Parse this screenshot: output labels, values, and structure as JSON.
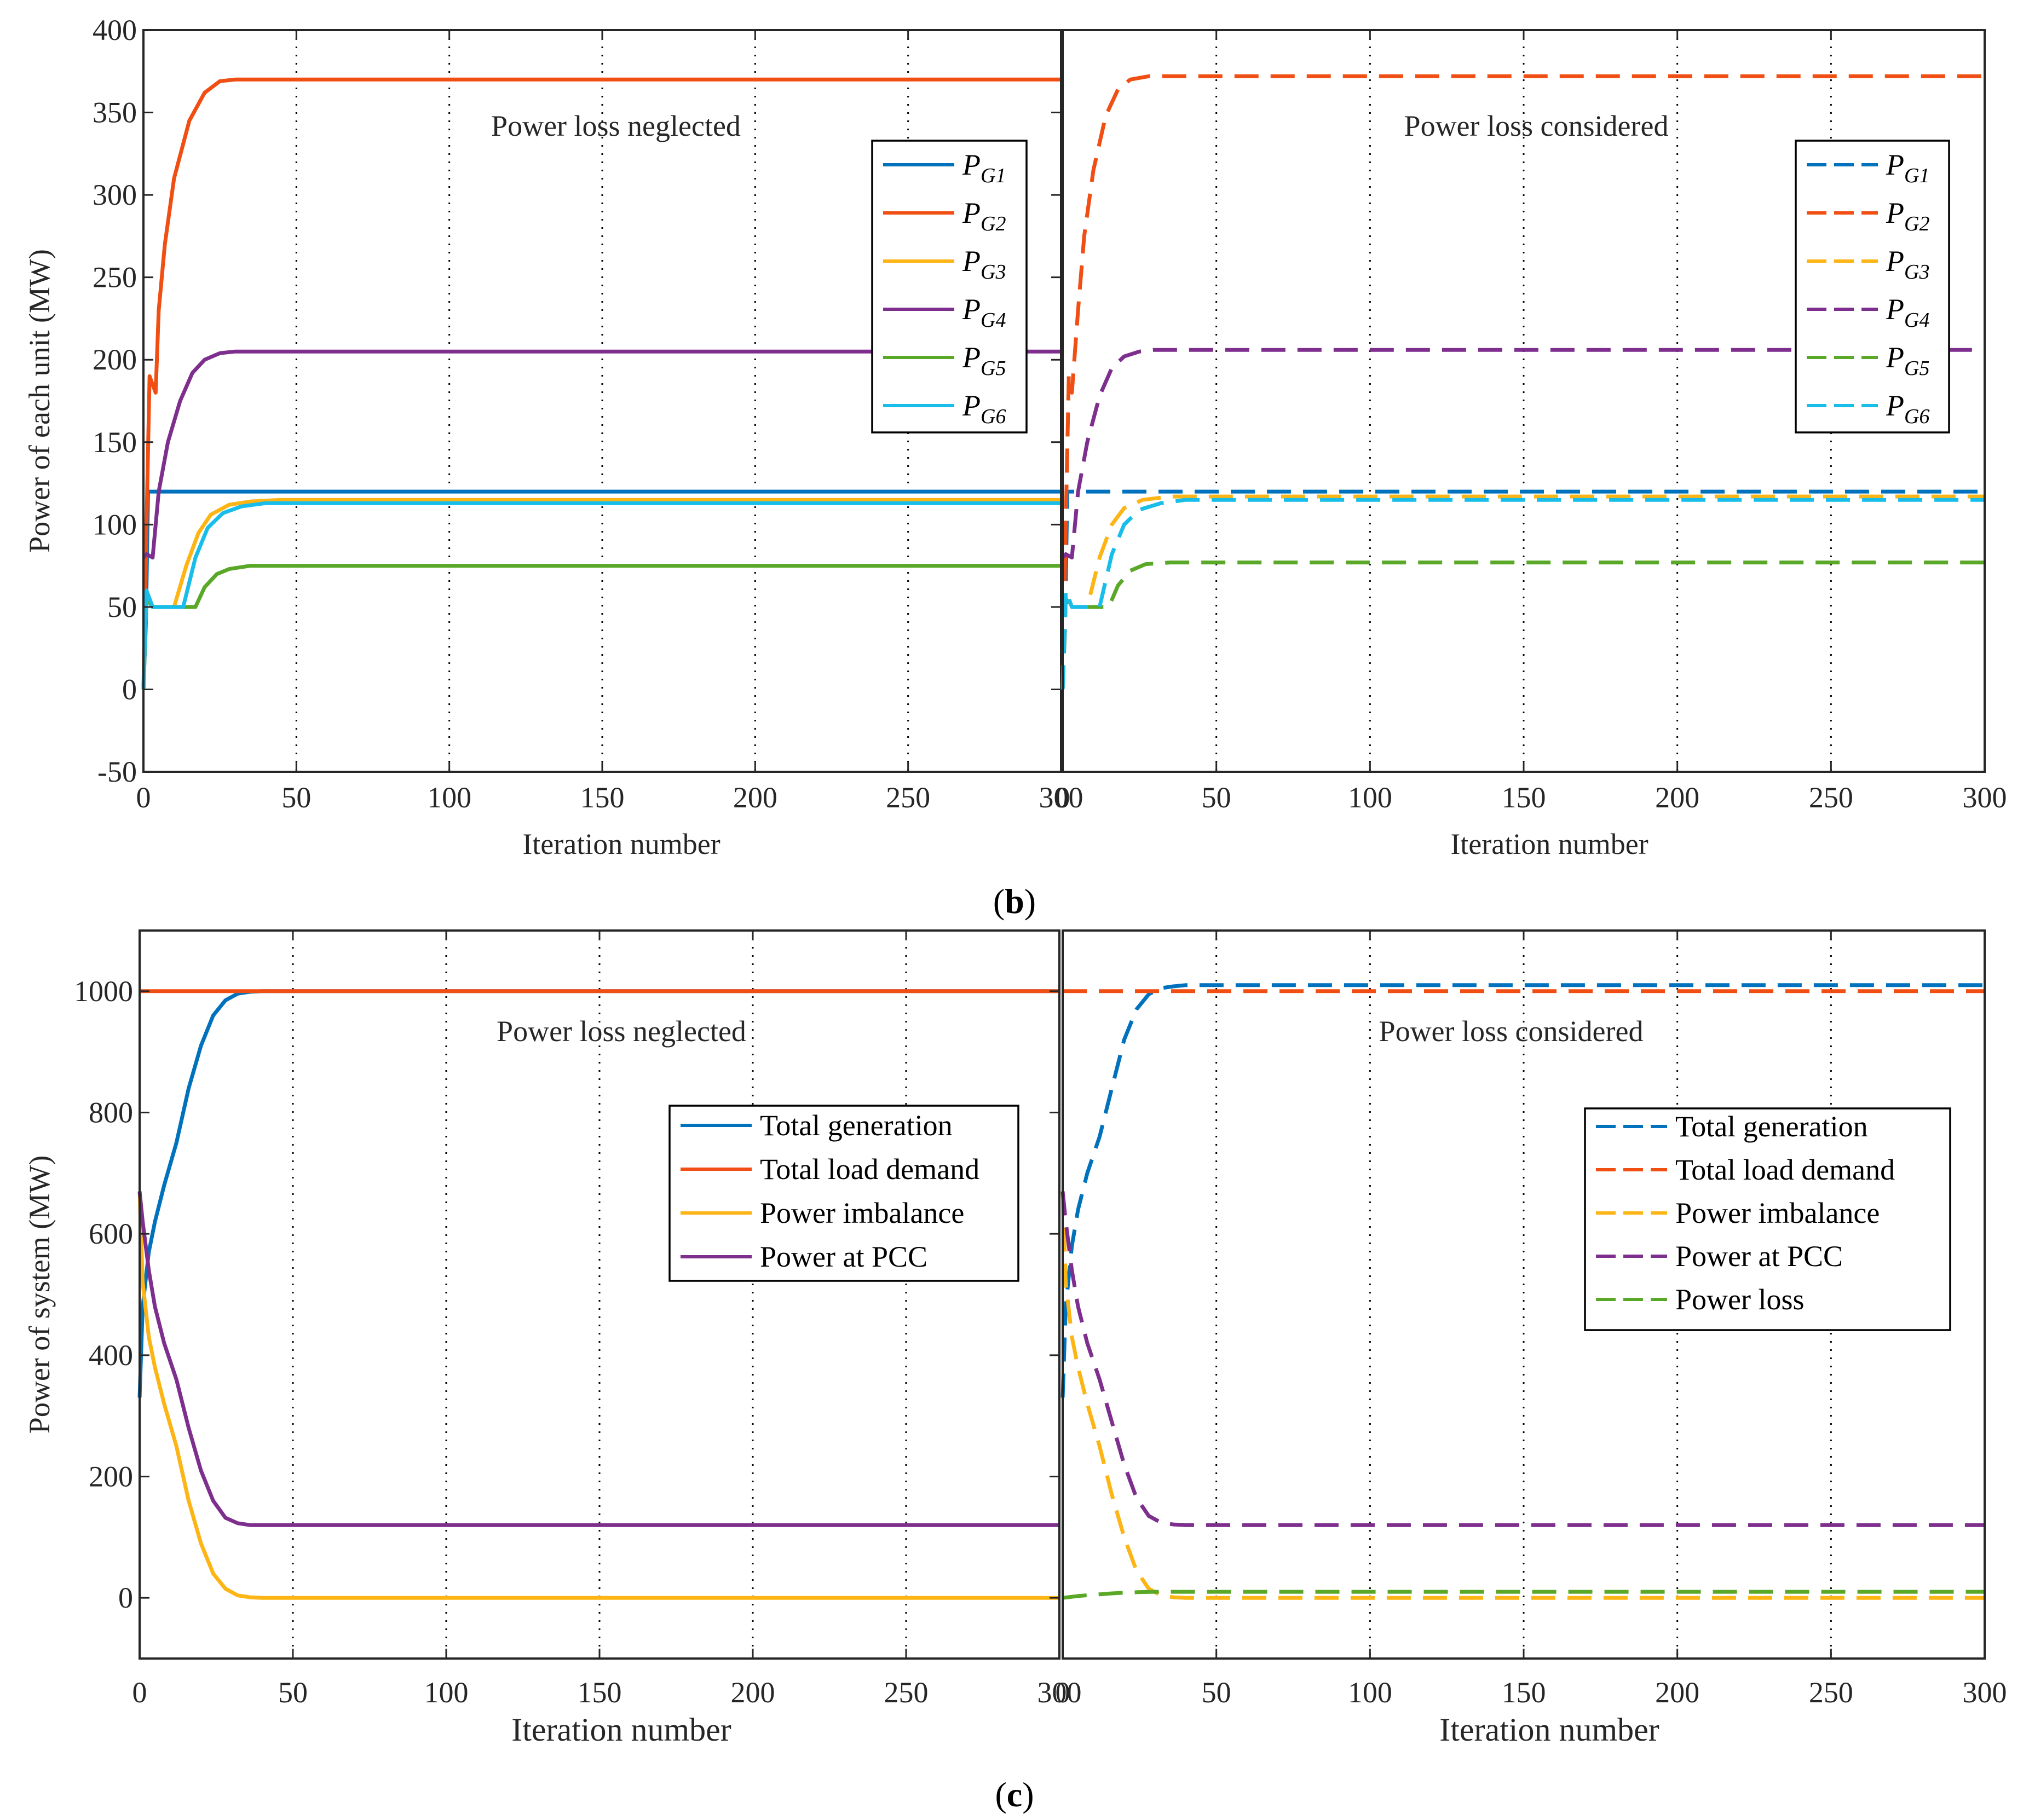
{
  "figure": {
    "panel_b_label": {
      "open": "(",
      "letter": "b",
      "close": ")"
    },
    "panel_c_label": {
      "open": "(",
      "letter": "c",
      "close": ")"
    }
  },
  "colors": {
    "blue": "#0072bd",
    "red": "#f04e13",
    "yellow": "#fdb515",
    "purple": "#7e2f8e",
    "green": "#5aa828",
    "cyan": "#19bdea",
    "axis": "#262626",
    "grid": "#000000"
  },
  "chart_data": [
    {
      "id": "b-left",
      "type": "line",
      "title": "",
      "annotation": "Power loss neglected",
      "xlabel": "Iteration number",
      "ylabel": "Power of each unit (MW)",
      "xlim": [
        0,
        300
      ],
      "ylim": [
        -50,
        400
      ],
      "xticks": [
        0,
        50,
        100,
        150,
        200,
        250,
        300
      ],
      "yticks": [
        -50,
        0,
        50,
        100,
        150,
        200,
        250,
        300,
        350,
        400
      ],
      "ytick_labels": [
        "-50",
        "0",
        "50",
        "100",
        "150",
        "200",
        "250",
        "300",
        "350",
        "400"
      ],
      "grid_x": [
        50,
        100,
        150,
        200,
        250
      ],
      "legend_position": "top-right",
      "series": [
        {
          "name": "P_G1",
          "sym": "P",
          "sub": "G1",
          "color": "blue",
          "dash": "solid",
          "x": [
            0,
            0.8,
            1.5,
            300
          ],
          "y": [
            0,
            40,
            120,
            120
          ]
        },
        {
          "name": "P_G2",
          "sym": "P",
          "sub": "G2",
          "color": "red",
          "dash": "solid",
          "x": [
            0,
            1,
            2,
            4,
            5,
            7,
            10,
            15,
            20,
            25,
            30,
            300
          ],
          "y": [
            0,
            100,
            190,
            180,
            230,
            270,
            310,
            345,
            362,
            369,
            370,
            370
          ]
        },
        {
          "name": "P_G3",
          "sym": "P",
          "sub": "G3",
          "color": "yellow",
          "dash": "solid",
          "x": [
            0,
            1,
            3,
            10,
            14,
            18,
            22,
            28,
            35,
            45,
            300
          ],
          "y": [
            0,
            60,
            50,
            50,
            75,
            95,
            106,
            112,
            114,
            115,
            115
          ]
        },
        {
          "name": "P_G4",
          "sym": "P",
          "sub": "G4",
          "color": "purple",
          "dash": "solid",
          "x": [
            0,
            1,
            3,
            5,
            8,
            12,
            16,
            20,
            25,
            30,
            300
          ],
          "y": [
            80,
            82,
            80,
            120,
            150,
            175,
            192,
            200,
            204,
            205,
            205
          ]
        },
        {
          "name": "P_G5",
          "sym": "P",
          "sub": "G5",
          "color": "green",
          "dash": "solid",
          "x": [
            0,
            1,
            3,
            17,
            20,
            24,
            28,
            35,
            300
          ],
          "y": [
            0,
            55,
            50,
            50,
            62,
            70,
            73,
            75,
            75
          ]
        },
        {
          "name": "P_G6",
          "sym": "P",
          "sub": "G6",
          "color": "cyan",
          "dash": "solid",
          "x": [
            0,
            1,
            3,
            13,
            17,
            21,
            26,
            32,
            40,
            300
          ],
          "y": [
            0,
            60,
            50,
            50,
            80,
            98,
            107,
            111,
            113,
            113
          ]
        }
      ]
    },
    {
      "id": "b-right",
      "type": "line",
      "title": "",
      "annotation": "Power loss considered",
      "xlabel": "Iteration number",
      "ylabel": "",
      "xlim": [
        0,
        300
      ],
      "ylim": [
        -50,
        400
      ],
      "xticks": [
        0,
        50,
        100,
        150,
        200,
        250,
        300
      ],
      "yticks": [],
      "grid_x": [
        50,
        100,
        150,
        200,
        250
      ],
      "legend_position": "top-right",
      "series": [
        {
          "name": "P_G1",
          "sym": "P",
          "sub": "G1",
          "color": "blue",
          "dash": "dashed",
          "x": [
            0,
            0.8,
            1.5,
            300
          ],
          "y": [
            0,
            40,
            120,
            120
          ]
        },
        {
          "name": "P_G2",
          "sym": "P",
          "sub": "G2",
          "color": "red",
          "dash": "dashed",
          "x": [
            0,
            1,
            2,
            3,
            5,
            7,
            10,
            14,
            18,
            22,
            28,
            300
          ],
          "y": [
            0,
            100,
            190,
            180,
            230,
            275,
            315,
            348,
            364,
            370,
            372,
            372
          ]
        },
        {
          "name": "P_G3",
          "sym": "P",
          "sub": "G3",
          "color": "yellow",
          "dash": "dashed",
          "x": [
            0,
            1,
            3,
            8,
            12,
            16,
            20,
            26,
            35,
            300
          ],
          "y": [
            0,
            60,
            50,
            50,
            80,
            100,
            110,
            115,
            117,
            117
          ]
        },
        {
          "name": "P_G4",
          "sym": "P",
          "sub": "G4",
          "color": "purple",
          "dash": "dashed",
          "x": [
            0,
            1,
            3,
            5,
            8,
            12,
            16,
            20,
            25,
            30,
            300
          ],
          "y": [
            80,
            82,
            80,
            120,
            150,
            178,
            195,
            202,
            205,
            206,
            206
          ]
        },
        {
          "name": "P_G5",
          "sym": "P",
          "sub": "G5",
          "color": "green",
          "dash": "dashed",
          "x": [
            0,
            1,
            3,
            15,
            18,
            22,
            27,
            35,
            300
          ],
          "y": [
            0,
            55,
            50,
            50,
            63,
            72,
            76,
            77,
            77
          ]
        },
        {
          "name": "P_G6",
          "sym": "P",
          "sub": "G6",
          "color": "cyan",
          "dash": "dashed",
          "x": [
            0,
            1,
            3,
            12,
            16,
            20,
            25,
            32,
            40,
            300
          ],
          "y": [
            0,
            60,
            50,
            50,
            82,
            100,
            109,
            113,
            115,
            115
          ]
        }
      ]
    },
    {
      "id": "c-left",
      "type": "line",
      "title": "",
      "annotation": "Power loss neglected",
      "xlabel": "Iteration number",
      "ylabel": "Power of system (MW)",
      "xlim": [
        0,
        300
      ],
      "ylim": [
        -100,
        1100
      ],
      "xticks": [
        0,
        50,
        100,
        150,
        200,
        250,
        300
      ],
      "yticks": [
        0,
        200,
        400,
        600,
        800,
        1000
      ],
      "ytick_labels": [
        "0",
        "200",
        "400",
        "600",
        "800",
        "1000"
      ],
      "grid_x": [
        50,
        100,
        150,
        200,
        250
      ],
      "legend_position": "center-right",
      "series": [
        {
          "name": "Total generation",
          "color": "blue",
          "dash": "solid",
          "x": [
            0,
            1,
            3,
            5,
            8,
            12,
            16,
            20,
            24,
            28,
            32,
            36,
            40,
            300
          ],
          "y": [
            330,
            480,
            570,
            620,
            680,
            750,
            840,
            910,
            960,
            985,
            996,
            999,
            1000,
            1000
          ]
        },
        {
          "name": "Total load demand",
          "color": "red",
          "dash": "solid",
          "x": [
            0,
            300
          ],
          "y": [
            1000,
            1000
          ]
        },
        {
          "name": "Power imbalance",
          "color": "yellow",
          "dash": "solid",
          "x": [
            0,
            1,
            3,
            5,
            8,
            12,
            16,
            20,
            24,
            28,
            32,
            36,
            40,
            300
          ],
          "y": [
            670,
            520,
            430,
            380,
            320,
            250,
            160,
            90,
            40,
            15,
            4,
            1,
            0,
            0
          ]
        },
        {
          "name": "Power at PCC",
          "color": "purple",
          "dash": "solid",
          "x": [
            0,
            1,
            3,
            5,
            8,
            12,
            16,
            20,
            24,
            28,
            32,
            36,
            40,
            300
          ],
          "y": [
            670,
            620,
            540,
            480,
            420,
            360,
            280,
            210,
            160,
            132,
            123,
            120,
            120,
            120
          ]
        }
      ]
    },
    {
      "id": "c-right",
      "type": "line",
      "title": "",
      "annotation": "Power loss considered",
      "xlabel": "Iteration number",
      "ylabel": "",
      "xlim": [
        0,
        300
      ],
      "ylim": [
        -100,
        1100
      ],
      "xticks": [
        0,
        50,
        100,
        150,
        200,
        250,
        300
      ],
      "yticks": [],
      "grid_x": [
        50,
        100,
        150,
        200,
        250
      ],
      "legend_position": "center-right",
      "series": [
        {
          "name": "Total generation",
          "color": "blue",
          "dash": "dashed",
          "x": [
            0,
            1,
            3,
            5,
            8,
            12,
            16,
            20,
            24,
            28,
            32,
            36,
            40,
            300
          ],
          "y": [
            330,
            480,
            580,
            640,
            700,
            760,
            840,
            920,
            970,
            995,
            1005,
            1008,
            1010,
            1010
          ]
        },
        {
          "name": "Total load demand",
          "color": "red",
          "dash": "dashed",
          "x": [
            0,
            300
          ],
          "y": [
            1000,
            1000
          ]
        },
        {
          "name": "Power imbalance",
          "color": "yellow",
          "dash": "dashed",
          "x": [
            0,
            1,
            3,
            5,
            8,
            12,
            16,
            20,
            24,
            28,
            32,
            36,
            40,
            300
          ],
          "y": [
            670,
            520,
            430,
            380,
            320,
            250,
            170,
            100,
            45,
            15,
            4,
            1,
            0,
            0
          ]
        },
        {
          "name": "Power at PCC",
          "color": "purple",
          "dash": "dashed",
          "x": [
            0,
            1,
            3,
            5,
            8,
            12,
            16,
            20,
            24,
            28,
            32,
            36,
            40,
            300
          ],
          "y": [
            670,
            620,
            540,
            480,
            420,
            360,
            290,
            220,
            165,
            135,
            124,
            121,
            120,
            120
          ]
        },
        {
          "name": "Power loss",
          "color": "green",
          "dash": "dashed",
          "x": [
            0,
            5,
            10,
            15,
            20,
            25,
            30,
            35,
            300
          ],
          "y": [
            0,
            3,
            5,
            7,
            8.5,
            9.5,
            10,
            10,
            10
          ]
        }
      ]
    }
  ]
}
